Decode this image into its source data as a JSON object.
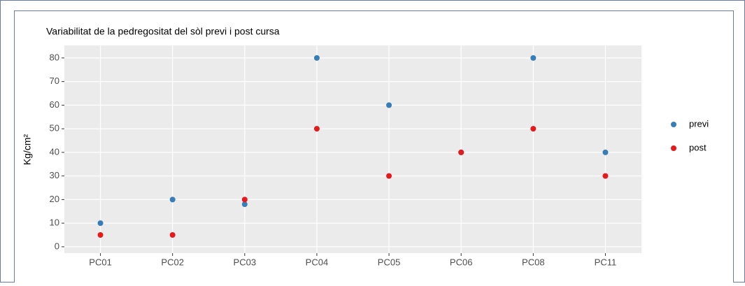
{
  "chart_data": {
    "type": "scatter",
    "title": "Variabilitat de la pedregositat del sòl previ i post cursa",
    "y_label": "Kg/cm²",
    "categories": [
      "PC01",
      "PC02",
      "PC03",
      "PC04",
      "PC05",
      "PC06",
      "PC08",
      "PC11"
    ],
    "series": [
      {
        "name": "previ",
        "color": "#377eb8",
        "values": [
          10,
          20,
          18,
          80,
          60,
          40,
          80,
          40
        ]
      },
      {
        "name": "post",
        "color": "#e41a1c",
        "values": [
          5,
          5,
          20,
          50,
          30,
          40,
          50,
          30
        ]
      }
    ],
    "ylim": [
      -2.7,
      85.3
    ],
    "yticks": [
      0,
      10,
      20,
      30,
      40,
      50,
      60,
      70,
      80
    ],
    "grid": true,
    "legend": "right"
  }
}
